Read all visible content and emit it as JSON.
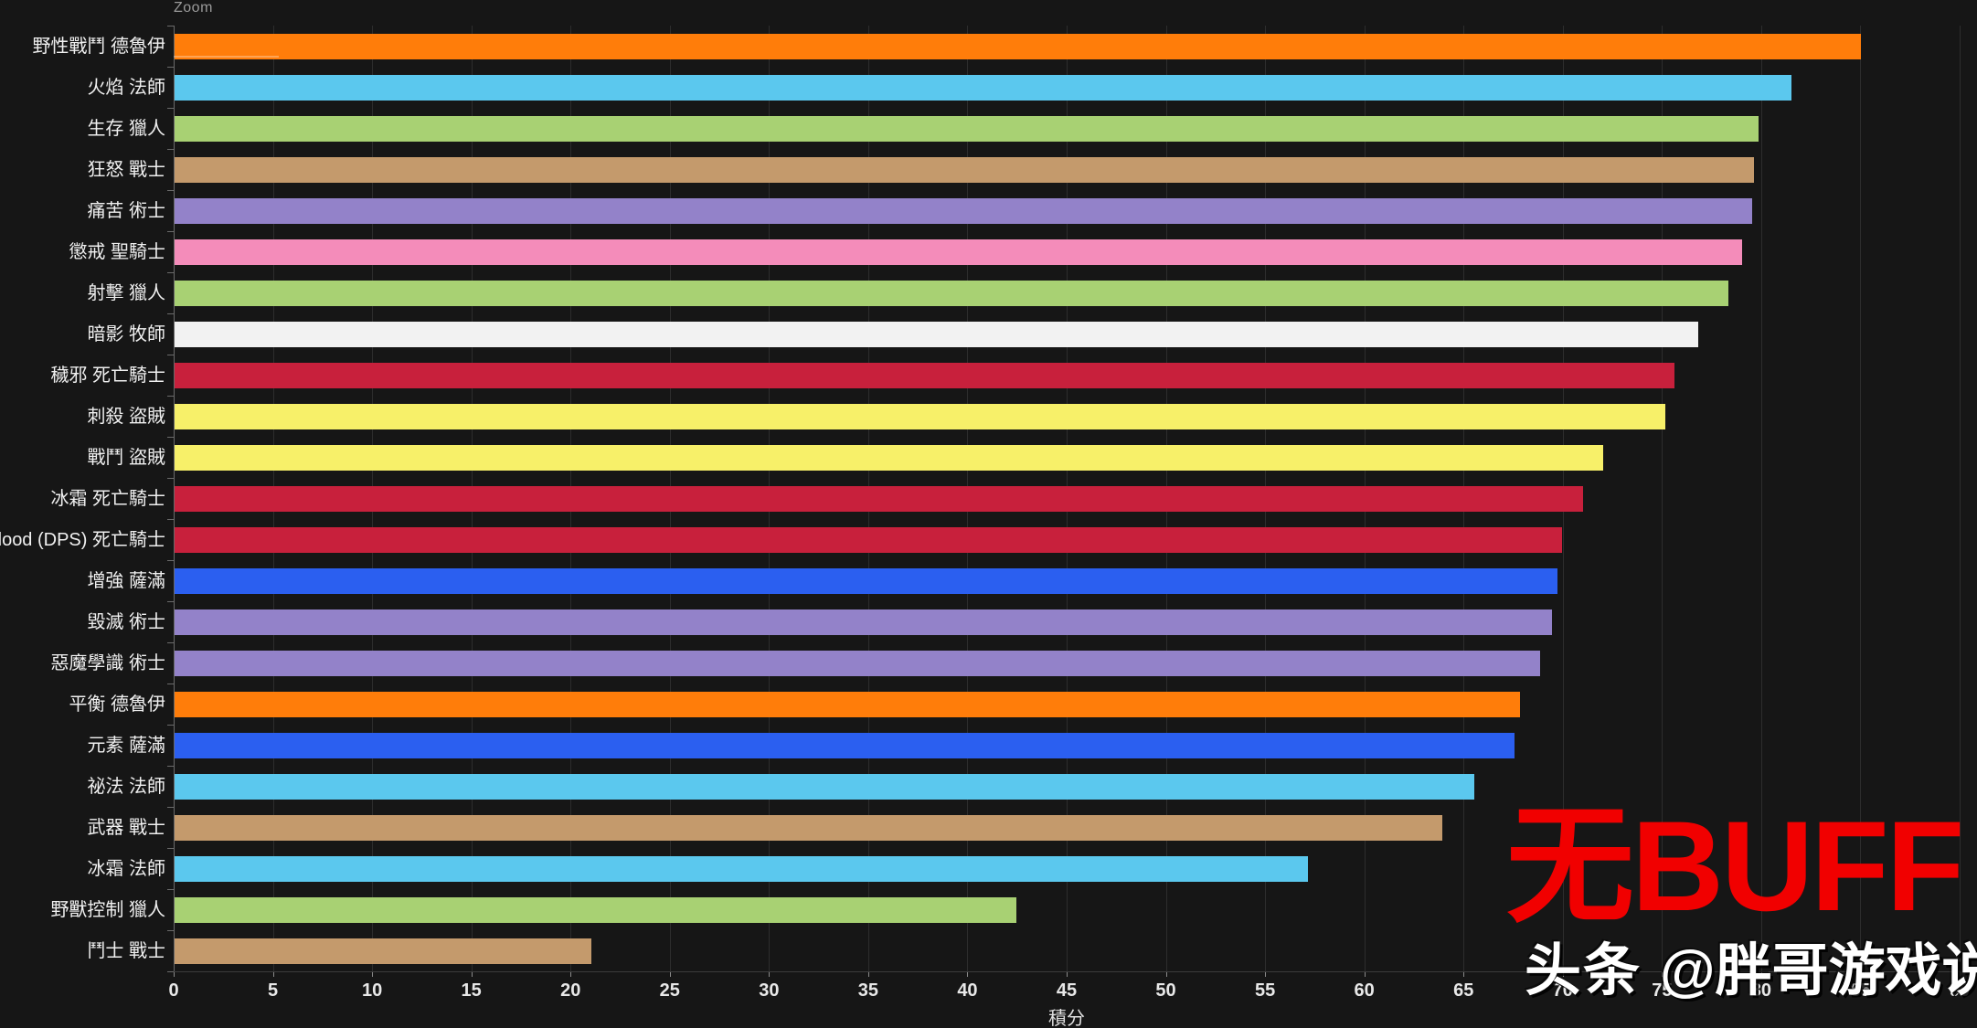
{
  "overlays": {
    "zoom_label": "Zoom",
    "watermark_red": "无BUFF",
    "watermark_brand": "头条",
    "watermark_handle": "@胖哥游戏说"
  },
  "chart_data": {
    "type": "bar",
    "orientation": "horizontal",
    "title": "",
    "xlabel": "積分",
    "xlim": [
      0,
      90
    ],
    "tick_step": 5,
    "grid": true,
    "legend": false,
    "background": "#161616",
    "categories": [
      "野性戰鬥 德魯伊",
      "火焰 法師",
      "生存 獵人",
      "狂怒 戰士",
      "痛苦 術士",
      "懲戒 聖騎士",
      "射擊 獵人",
      "暗影 牧師",
      "穢邪 死亡騎士",
      "刺殺 盜賊",
      "戰鬥 盜賊",
      "冰霜 死亡騎士",
      "Blood (DPS) 死亡騎士",
      "增強 薩滿",
      "毀滅 術士",
      "惡魔學識 術士",
      "平衡 德魯伊",
      "元素 薩滿",
      "祕法 法師",
      "武器 戰士",
      "冰霜 法師",
      "野獸控制 獵人",
      "鬥士 戰士"
    ],
    "values": [
      85.0,
      81.5,
      79.8,
      79.6,
      79.5,
      79.0,
      78.3,
      76.8,
      75.6,
      75.1,
      72.0,
      71.0,
      69.9,
      69.7,
      69.4,
      68.8,
      67.8,
      67.5,
      65.5,
      63.9,
      57.1,
      42.4,
      21.0
    ],
    "classes": [
      "druid",
      "mage",
      "hunter",
      "warrior",
      "warlock",
      "paladin",
      "hunter",
      "priest",
      "deathknight",
      "rogue",
      "rogue",
      "deathknight",
      "deathknight",
      "shaman",
      "warlock",
      "warlock",
      "druid",
      "shaman",
      "mage",
      "warrior",
      "mage",
      "hunter",
      "warrior"
    ],
    "class_colors": {
      "druid": "#FF7D0A",
      "mage": "#5BC8EE",
      "hunter": "#A8D173",
      "warrior": "#C49A6C",
      "warlock": "#9382C9",
      "paladin": "#F48CBA",
      "priest": "#F2F2F2",
      "deathknight": "#C8203C",
      "rogue": "#F7F069",
      "shaman": "#2B5FF0"
    }
  }
}
